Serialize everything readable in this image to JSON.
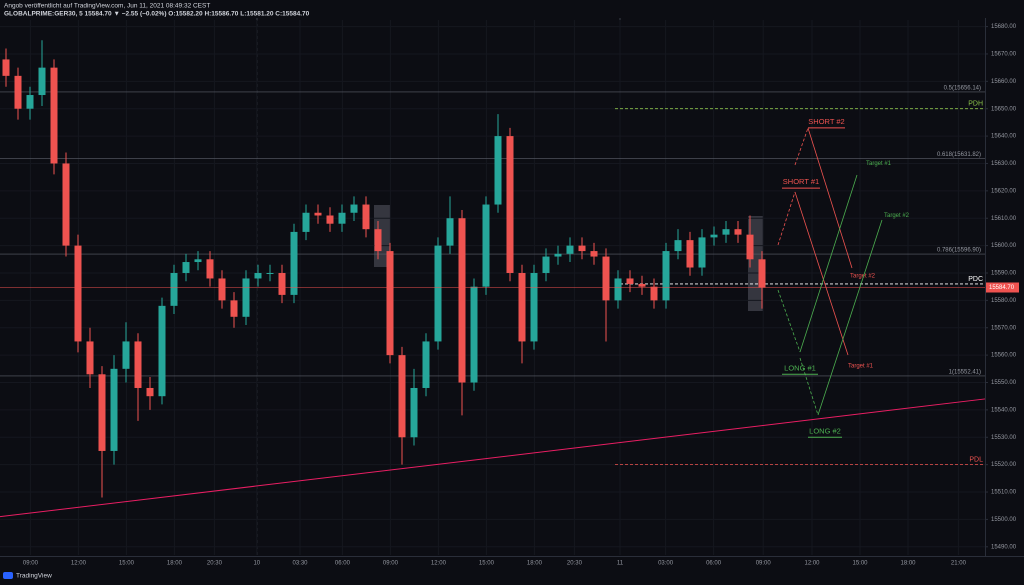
{
  "header": {
    "publisher": "Angob veröffentlicht auf TradingView.com, Jun 11, 2021 08:49:32 CEST",
    "symbol": "GLOBALPRIME:GER30, 5  15584.70 ▼ −2.55 (−0.02%)  O:15582.20  H:15586.70  L:15581.20  C:15584.70"
  },
  "footer": {
    "brand": "TradingView"
  },
  "chart_data": {
    "type": "candlestick",
    "up_color": "#26a69a",
    "down_color": "#ef5350",
    "grid": true,
    "x": [
      0.375,
      1.125,
      1.875,
      2.625,
      3.375,
      4.125,
      4.875,
      5.625,
      6.375,
      7.125,
      7.875,
      8.625,
      9.375,
      10.125,
      10.875,
      11.625,
      12.375,
      13.125,
      13.875,
      14.625,
      15.375,
      16.125,
      16.875,
      17.625,
      18.375,
      19.125,
      19.875,
      20.625,
      21.375,
      22.125,
      22.875,
      23.625,
      24.375,
      25.125,
      25.875,
      26.625,
      27.375,
      28.125,
      28.875,
      29.625,
      30.375,
      31.125,
      31.875,
      32.625,
      33.375,
      34.125,
      34.875,
      35.625,
      36.375,
      37.125,
      37.875,
      38.625,
      39.375,
      40.125,
      40.875,
      41.625,
      42.375,
      43.125,
      43.875,
      44.625,
      45.375,
      46.125,
      46.875,
      47.625
    ],
    "open": [
      15668,
      15662,
      15650,
      15655,
      15665,
      15630,
      15600,
      15565,
      15553,
      15525,
      15555,
      15565,
      15548,
      15545,
      15578,
      15590,
      15594,
      15595,
      15588,
      15580,
      15574,
      15588,
      15590,
      15590,
      15582,
      15605,
      15612,
      15611,
      15608,
      15612,
      15615,
      15606,
      15598,
      15560,
      15530,
      15548,
      15565,
      15600,
      15610,
      15550,
      15585,
      15615,
      15640,
      15590,
      15565,
      15590,
      15596,
      15597,
      15600,
      15598,
      15596,
      15580,
      15588,
      15586,
      15585,
      15580,
      15598,
      15602,
      15592,
      15603,
      15604,
      15606,
      15604,
      15595
    ],
    "high": [
      15672,
      15665,
      15658,
      15675,
      15668,
      15634,
      15604,
      15570,
      15556,
      15560,
      15572,
      15568,
      15552,
      15581,
      15593,
      15597,
      15598,
      15598,
      15591,
      15583,
      15591,
      15593,
      15593,
      15593,
      15608,
      15615,
      15615,
      15614,
      15615,
      15618,
      15618,
      15609,
      15601,
      15563,
      15555,
      15568,
      15603,
      15618,
      15613,
      15588,
      15618,
      15648,
      15643,
      15593,
      15593,
      15599,
      15600,
      15603,
      15603,
      15601,
      15599,
      15591,
      15591,
      15589,
      15588,
      15601,
      15606,
      15605,
      15606,
      15607,
      15609,
      15609,
      15611,
      15598
    ],
    "low": [
      15658,
      15646,
      15646,
      15651,
      15626,
      15596,
      15561,
      15548,
      15508,
      15520,
      15550,
      15536,
      15540,
      15542,
      15575,
      15587,
      15591,
      15585,
      15577,
      15570,
      15571,
      15585,
      15587,
      15579,
      15579,
      15602,
      15608,
      15605,
      15605,
      15609,
      15603,
      15595,
      15557,
      15520,
      15527,
      15545,
      15562,
      15597,
      15538,
      15547,
      15582,
      15612,
      15587,
      15557,
      15562,
      15587,
      15593,
      15594,
      15595,
      15593,
      15565,
      15577,
      15583,
      15582,
      15577,
      15577,
      15595,
      15589,
      15589,
      15600,
      15601,
      15601,
      15592,
      15577
    ],
    "close": [
      15662,
      15650,
      15655,
      15665,
      15630,
      15600,
      15565,
      15553,
      15525,
      15555,
      15565,
      15548,
      15545,
      15578,
      15590,
      15594,
      15595,
      15588,
      15580,
      15574,
      15588,
      15590,
      15590,
      15582,
      15605,
      15612,
      15611,
      15608,
      15612,
      15615,
      15606,
      15598,
      15560,
      15530,
      15548,
      15565,
      15600,
      15610,
      15550,
      15585,
      15615,
      15640,
      15590,
      15565,
      15590,
      15596,
      15597,
      15600,
      15598,
      15596,
      15580,
      15588,
      15586,
      15585,
      15580,
      15598,
      15602,
      15592,
      15603,
      15604,
      15606,
      15604,
      15595,
      15584.7
    ],
    "xlim": [
      0,
      61.5625
    ],
    "xticks": [
      {
        "value": 1.9,
        "label": "09:00"
      },
      {
        "value": 4.9,
        "label": "12:00"
      },
      {
        "value": 7.9,
        "label": "15:00"
      },
      {
        "value": 10.9,
        "label": "18:00"
      },
      {
        "value": 13.4,
        "label": "20:30"
      },
      {
        "value": 16.05,
        "label": "10"
      },
      {
        "value": 18.75,
        "label": "03:30"
      },
      {
        "value": 21.4,
        "label": "06:00"
      },
      {
        "value": 24.4,
        "label": "09:00"
      },
      {
        "value": 27.4,
        "label": "12:00"
      },
      {
        "value": 30.4,
        "label": "15:00"
      },
      {
        "value": 33.4,
        "label": "18:00"
      },
      {
        "value": 35.9,
        "label": "20:30"
      },
      {
        "value": 38.75,
        "label": "11"
      },
      {
        "value": 41.6,
        "label": "03:00"
      },
      {
        "value": 44.6,
        "label": "06:00"
      },
      {
        "value": 47.7,
        "label": "09:00"
      },
      {
        "value": 50.75,
        "label": "12:00"
      },
      {
        "value": 53.75,
        "label": "15:00"
      },
      {
        "value": 56.75,
        "label": "18:00"
      },
      {
        "value": 59.9,
        "label": "21:00"
      }
    ],
    "ylim": [
      15487,
      15682.4
    ],
    "yticks": [
      {
        "value": 15490,
        "label": "15490.00"
      },
      {
        "value": 15500,
        "label": "15500.00"
      },
      {
        "value": 15510,
        "label": "15510.00"
      },
      {
        "value": 15520,
        "label": "15520.00"
      },
      {
        "value": 15530,
        "label": "15530.00"
      },
      {
        "value": 15540,
        "label": "15540.00"
      },
      {
        "value": 15550,
        "label": "15550.00"
      },
      {
        "value": 15560,
        "label": "15560.00"
      },
      {
        "value": 15570,
        "label": "15570.00"
      },
      {
        "value": 15580,
        "label": "15580.00"
      },
      {
        "value": 15590,
        "label": "15590.00"
      },
      {
        "value": 15600,
        "label": "15600.00"
      },
      {
        "value": 15610,
        "label": "15610.00"
      },
      {
        "value": 15620,
        "label": "15620.00"
      },
      {
        "value": 15630,
        "label": "15630.00"
      },
      {
        "value": 15640,
        "label": "15640.00"
      },
      {
        "value": 15650,
        "label": "15650.00"
      },
      {
        "value": 15660,
        "label": "15660.00"
      },
      {
        "value": 15670,
        "label": "15670.00"
      },
      {
        "value": 15680,
        "label": "15680.00"
      }
    ],
    "last_price": {
      "value": 15584.7,
      "label": "15584.70",
      "color": "#ef5350"
    },
    "trendline": {
      "values": [
        15501,
        15544
      ],
      "color": "#e91e63"
    },
    "fib_levels": [
      {
        "label": "0.5(15656.14)",
        "value": 15656.14
      },
      {
        "label": "0.618(15631.82)",
        "value": 15631.82
      },
      {
        "label": "0.786(15596.90)",
        "value": 15596.9
      },
      {
        "label": "1(15552.41)",
        "value": 15552.41
      }
    ],
    "levels": [
      {
        "label": "PDH",
        "value": 15650,
        "color": "#8bc34a"
      },
      {
        "label": "PDC",
        "value": 15586,
        "color": "#ffffff"
      },
      {
        "label": "PDL",
        "value": 15520,
        "color": "#ef5350"
      }
    ],
    "trades": [
      {
        "label": "SHORT #1",
        "value": 15621,
        "color": "#ef5350"
      },
      {
        "label": "SHORT #2",
        "value": 15643,
        "color": "#ef5350"
      },
      {
        "label": "LONG #1",
        "value": 15553,
        "color": "#4caf50"
      },
      {
        "label": "LONG #2",
        "value": 15530,
        "color": "#4caf50"
      }
    ],
    "targets": [
      {
        "label": "Target #1",
        "value": 15630,
        "color": "#4caf50"
      },
      {
        "label": "Target #2",
        "value": 15611,
        "color": "#4caf50"
      },
      {
        "label": "Target #2",
        "value": 15589,
        "color": "#ef5350"
      },
      {
        "label": "Target #1",
        "value": 15556,
        "color": "#ef5350"
      }
    ]
  }
}
